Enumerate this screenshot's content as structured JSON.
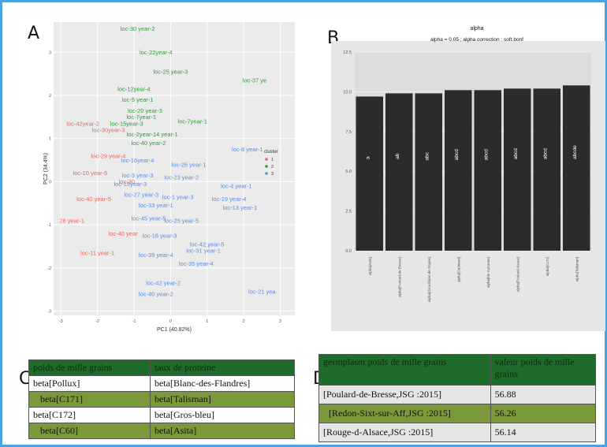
{
  "panels": {
    "A": "A",
    "B": "B",
    "C": "C",
    "D": "D"
  },
  "chart_data": [
    {
      "panel": "A",
      "type": "scatter",
      "xlabel": "PC1 (40.82%)",
      "ylabel": "PC2 (34.4%)",
      "xlim": [
        -3.2,
        3.4
      ],
      "ylim": [
        -3.1,
        3.7
      ],
      "xticks": [
        -3,
        -2,
        -1,
        0,
        1,
        2,
        3
      ],
      "legend_title": "cluster",
      "series": [
        {
          "name": "1",
          "color": "#e8685f",
          "points": [
            {
              "x": -2.4,
              "y": 1.3,
              "label": "loc-42year-2"
            },
            {
              "x": -1.7,
              "y": 1.15,
              "label": "loc-30year-3"
            },
            {
              "x": -1.7,
              "y": 0.55,
              "label": "loc-29 year-4"
            },
            {
              "x": -2.2,
              "y": 0.15,
              "label": "loc-10 year-5"
            },
            {
              "x": -1.2,
              "y": -0.05,
              "label": "loc-30"
            },
            {
              "x": -2.1,
              "y": -0.45,
              "label": "loc-40 year-5"
            },
            {
              "x": -2.7,
              "y": -0.95,
              "label": "28 year-1"
            },
            {
              "x": -1.3,
              "y": -1.25,
              "label": "loc-40 year"
            },
            {
              "x": -2.0,
              "y": -1.7,
              "label": "loc-11 year-1"
            }
          ]
        },
        {
          "name": "2",
          "color": "#2e9e3e",
          "points": [
            {
              "x": -0.9,
              "y": 3.5,
              "label": "loc-30 year-2"
            },
            {
              "x": -0.4,
              "y": 2.95,
              "label": "loc-22year-4"
            },
            {
              "x": 0.0,
              "y": 2.5,
              "label": "loc-25 year-3"
            },
            {
              "x": 2.3,
              "y": 2.3,
              "label": "loc-37 ye"
            },
            {
              "x": -1.0,
              "y": 2.1,
              "label": "loc-12year-4"
            },
            {
              "x": -0.9,
              "y": 1.85,
              "label": "loc-5 year-1"
            },
            {
              "x": -0.7,
              "y": 1.6,
              "label": "loc-20 year-3"
            },
            {
              "x": -0.8,
              "y": 1.45,
              "label": "loc-7year-1"
            },
            {
              "x": 0.6,
              "y": 1.35,
              "label": "loc-7year-1"
            },
            {
              "x": -1.2,
              "y": 1.3,
              "label": "loc-15year-3"
            },
            {
              "x": -0.5,
              "y": 1.05,
              "label": "loc-2year-14 year-1"
            },
            {
              "x": -0.6,
              "y": 0.85,
              "label": "loc-40 year-2"
            }
          ]
        },
        {
          "name": "3",
          "color": "#5a8ee6",
          "points": [
            {
              "x": 2.1,
              "y": 0.7,
              "label": "loc-8 year-1"
            },
            {
              "x": -0.9,
              "y": 0.45,
              "label": "loc-16year-4"
            },
            {
              "x": 0.5,
              "y": 0.35,
              "label": "loc-26 year-1"
            },
            {
              "x": -0.9,
              "y": 0.1,
              "label": "loc-3 year-3"
            },
            {
              "x": 0.3,
              "y": 0.05,
              "label": "loc-23 year-2"
            },
            {
              "x": -1.1,
              "y": -0.1,
              "label": "loc-15year-3"
            },
            {
              "x": 1.8,
              "y": -0.15,
              "label": "loc-4 year-1"
            },
            {
              "x": -0.8,
              "y": -0.35,
              "label": "loc-27 year-3"
            },
            {
              "x": 0.2,
              "y": -0.4,
              "label": "loc-1 year-3"
            },
            {
              "x": 1.6,
              "y": -0.45,
              "label": "loc-19 year-4"
            },
            {
              "x": -0.4,
              "y": -0.6,
              "label": "loc-33 year-1"
            },
            {
              "x": 1.9,
              "y": -0.65,
              "label": "loc-13 year-1"
            },
            {
              "x": -0.6,
              "y": -0.9,
              "label": "loc-45 year-5"
            },
            {
              "x": 0.3,
              "y": -0.95,
              "label": "loc-25 year-5"
            },
            {
              "x": -0.3,
              "y": -1.3,
              "label": "loc-18 year-3"
            },
            {
              "x": 1.0,
              "y": -1.5,
              "label": "loc-42 year-5"
            },
            {
              "x": 0.9,
              "y": -1.65,
              "label": "loc-31 year-1"
            },
            {
              "x": -0.4,
              "y": -1.75,
              "label": "loc-39 year-4"
            },
            {
              "x": 0.7,
              "y": -1.95,
              "label": "loc-35 year-4"
            },
            {
              "x": -0.2,
              "y": -2.4,
              "label": "loc-42 year-2"
            },
            {
              "x": -0.4,
              "y": -2.65,
              "label": "loc-40 year-2"
            },
            {
              "x": 2.5,
              "y": -2.6,
              "label": "loc-21 yea"
            }
          ]
        }
      ]
    },
    {
      "panel": "B",
      "type": "bar",
      "title": "alpha",
      "subtitle": "alpha = 0.05 ; alpha correction : soft.bonf",
      "ylim": [
        0,
        12.5
      ],
      "yticks": [
        "0.0",
        "2.5",
        "5.0",
        "7.5",
        "10.0",
        "12.5"
      ],
      "bar_color": "#2b2b2b",
      "categories": [
        "alpha[Aulis]",
        "alpha[Poulard-de-Bresse]",
        "alpha[Gros-blanc-de-Sayeix]",
        "alpha[Orpiment]",
        "alpha[ble-Automne]",
        "alpha[Poulard-Alsace]",
        "alpha[C171]",
        "alpha[Talisman]"
      ],
      "values": [
        9.7,
        9.9,
        9.9,
        10.1,
        10.1,
        10.2,
        10.2,
        10.4
      ],
      "group_labels": [
        "a",
        "ab",
        "abc",
        "abcd",
        "abcd",
        "abcd",
        "abcd",
        "abcde"
      ]
    }
  ],
  "tableC": {
    "headers": [
      "poids de mille grains",
      "taux de proteine"
    ],
    "rows": [
      [
        "beta[Pollux]",
        "beta[Blanc-des-Flandres]"
      ],
      [
        "beta[C171]",
        "beta[Talisman]"
      ],
      [
        "beta[C172]",
        "beta[Gros-bleu]"
      ],
      [
        "beta[C60]",
        "beta[Asita]"
      ]
    ]
  },
  "tableD": {
    "headers": [
      "germplasm poids de mille grains",
      "valeur poids de mille grains"
    ],
    "rows": [
      [
        "[Poulard-de-Bresse,JSG :2015]",
        "56.88"
      ],
      [
        "[Redon-Sixt-sur-Aff,JSG :2015]",
        "56.26"
      ],
      [
        "[Rouge-d-Alsace,JSG :2015]",
        "56.14"
      ]
    ]
  }
}
